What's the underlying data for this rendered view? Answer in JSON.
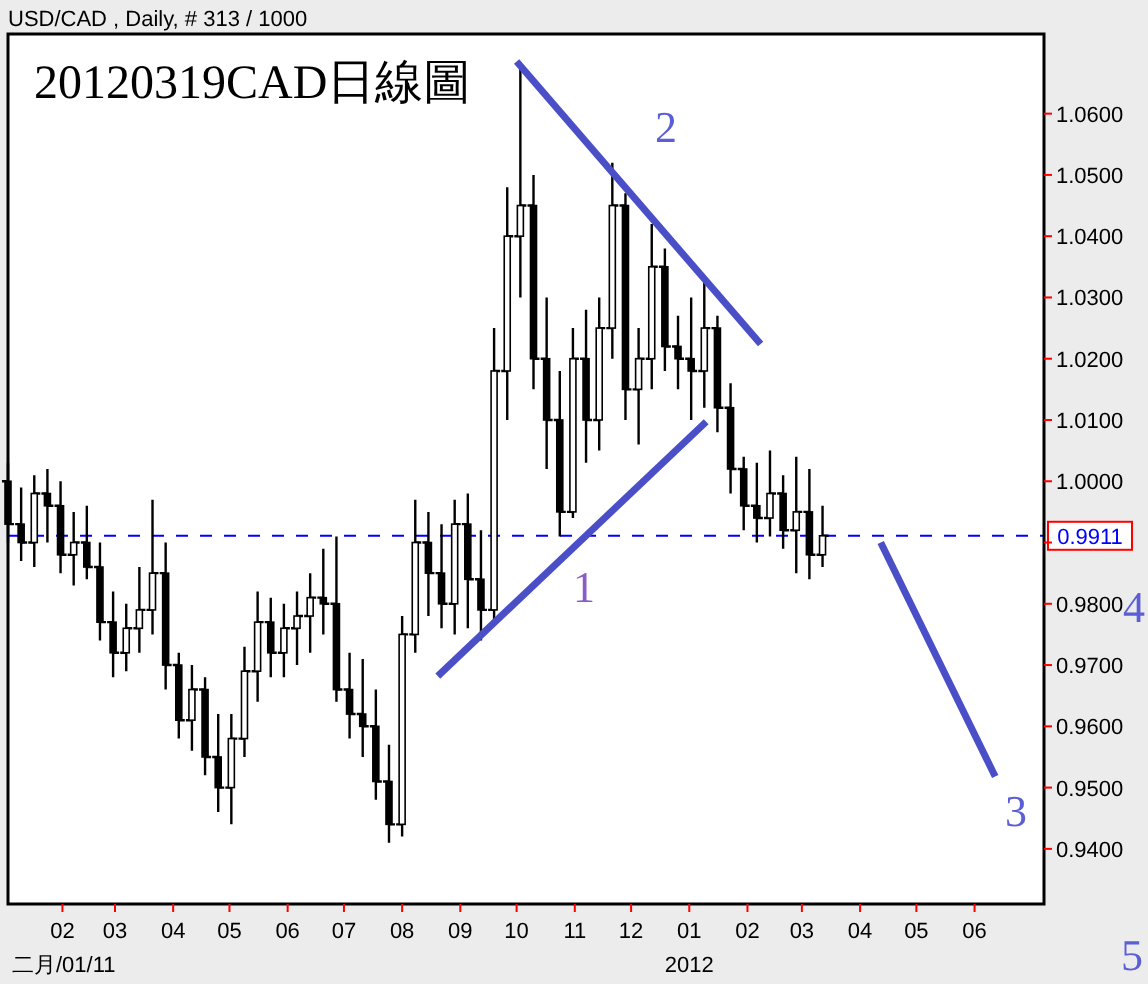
{
  "chart_data": {
    "type": "candlestick",
    "title": "20120319CAD日線圖",
    "subtitle": "USD/CAD , Daily, # 313 / 1000",
    "x": [
      "2011-01-03",
      "2011-01-10",
      "2011-01-17",
      "2011-01-24",
      "2011-01-31",
      "2011-02-07",
      "2011-02-14",
      "2011-02-21",
      "2011-02-28",
      "2011-03-07",
      "2011-03-14",
      "2011-03-21",
      "2011-03-28",
      "2011-04-04",
      "2011-04-11",
      "2011-04-18",
      "2011-04-25",
      "2011-05-02",
      "2011-05-09",
      "2011-05-16",
      "2011-05-23",
      "2011-05-30",
      "2011-06-06",
      "2011-06-13",
      "2011-06-20",
      "2011-06-27",
      "2011-07-04",
      "2011-07-11",
      "2011-07-18",
      "2011-07-25",
      "2011-08-01",
      "2011-08-08",
      "2011-08-15",
      "2011-08-22",
      "2011-08-29",
      "2011-09-05",
      "2011-09-12",
      "2011-09-19",
      "2011-09-26",
      "2011-10-03",
      "2011-10-10",
      "2011-10-17",
      "2011-10-24",
      "2011-10-31",
      "2011-11-07",
      "2011-11-14",
      "2011-11-21",
      "2011-11-28",
      "2011-12-05",
      "2011-12-12",
      "2011-12-19",
      "2011-12-26",
      "2012-01-02",
      "2012-01-09",
      "2012-01-16",
      "2012-01-23",
      "2012-01-30",
      "2012-02-06",
      "2012-02-13",
      "2012-02-20",
      "2012-02-27",
      "2012-03-05",
      "2012-03-12"
    ],
    "ohlc": [
      [
        1.0,
        1.003,
        0.99,
        0.993
      ],
      [
        0.993,
        0.999,
        0.987,
        0.99
      ],
      [
        0.99,
        1.001,
        0.986,
        0.998
      ],
      [
        0.998,
        1.002,
        0.99,
        0.996
      ],
      [
        0.996,
        1.0,
        0.985,
        0.988
      ],
      [
        0.988,
        0.995,
        0.983,
        0.99
      ],
      [
        0.99,
        0.996,
        0.984,
        0.986
      ],
      [
        0.986,
        0.99,
        0.974,
        0.977
      ],
      [
        0.977,
        0.982,
        0.968,
        0.972
      ],
      [
        0.972,
        0.98,
        0.969,
        0.976
      ],
      [
        0.976,
        0.986,
        0.972,
        0.979
      ],
      [
        0.979,
        0.997,
        0.975,
        0.985
      ],
      [
        0.985,
        0.99,
        0.966,
        0.97
      ],
      [
        0.97,
        0.972,
        0.958,
        0.961
      ],
      [
        0.961,
        0.97,
        0.956,
        0.966
      ],
      [
        0.966,
        0.968,
        0.952,
        0.955
      ],
      [
        0.955,
        0.962,
        0.946,
        0.95
      ],
      [
        0.95,
        0.962,
        0.944,
        0.958
      ],
      [
        0.958,
        0.973,
        0.955,
        0.969
      ],
      [
        0.969,
        0.982,
        0.964,
        0.977
      ],
      [
        0.977,
        0.981,
        0.968,
        0.972
      ],
      [
        0.972,
        0.98,
        0.968,
        0.976
      ],
      [
        0.976,
        0.982,
        0.97,
        0.978
      ],
      [
        0.978,
        0.985,
        0.972,
        0.981
      ],
      [
        0.981,
        0.989,
        0.975,
        0.98
      ],
      [
        0.98,
        0.991,
        0.964,
        0.966
      ],
      [
        0.966,
        0.972,
        0.958,
        0.962
      ],
      [
        0.962,
        0.971,
        0.955,
        0.96
      ],
      [
        0.96,
        0.966,
        0.948,
        0.951
      ],
      [
        0.951,
        0.957,
        0.941,
        0.944
      ],
      [
        0.944,
        0.978,
        0.942,
        0.975
      ],
      [
        0.975,
        0.997,
        0.972,
        0.99
      ],
      [
        0.99,
        0.995,
        0.978,
        0.985
      ],
      [
        0.985,
        0.993,
        0.976,
        0.98
      ],
      [
        0.98,
        0.997,
        0.975,
        0.993
      ],
      [
        0.993,
        0.998,
        0.976,
        0.984
      ],
      [
        0.984,
        0.992,
        0.974,
        0.979
      ],
      [
        0.979,
        1.025,
        0.977,
        1.018
      ],
      [
        1.018,
        1.048,
        1.01,
        1.04
      ],
      [
        1.04,
        1.068,
        1.03,
        1.045
      ],
      [
        1.045,
        1.05,
        1.015,
        1.02
      ],
      [
        1.02,
        1.03,
        1.002,
        1.01
      ],
      [
        1.01,
        1.018,
        0.991,
        0.995
      ],
      [
        0.995,
        1.025,
        0.994,
        1.02
      ],
      [
        1.02,
        1.028,
        1.003,
        1.01
      ],
      [
        1.01,
        1.03,
        1.005,
        1.025
      ],
      [
        1.025,
        1.052,
        1.02,
        1.045
      ],
      [
        1.045,
        1.047,
        1.01,
        1.015
      ],
      [
        1.015,
        1.025,
        1.006,
        1.02
      ],
      [
        1.02,
        1.042,
        1.015,
        1.035
      ],
      [
        1.035,
        1.038,
        1.018,
        1.022
      ],
      [
        1.022,
        1.027,
        1.015,
        1.02
      ],
      [
        1.02,
        1.03,
        1.01,
        1.018
      ],
      [
        1.018,
        1.033,
        1.012,
        1.025
      ],
      [
        1.025,
        1.027,
        1.008,
        1.012
      ],
      [
        1.012,
        1.016,
        0.998,
        1.002
      ],
      [
        1.002,
        1.004,
        0.992,
        0.996
      ],
      [
        0.996,
        1.003,
        0.99,
        0.994
      ],
      [
        0.994,
        1.005,
        0.991,
        0.998
      ],
      [
        0.998,
        1.001,
        0.989,
        0.992
      ],
      [
        0.992,
        1.004,
        0.985,
        0.995
      ],
      [
        0.995,
        1.002,
        0.984,
        0.988
      ],
      [
        0.988,
        0.996,
        0.986,
        0.9911
      ]
    ],
    "color": "#000000",
    "series": [
      {
        "type": "line",
        "color": "#4a4fc8",
        "x": [
          "2011-10-01",
          "2012-02-08"
        ],
        "values": [
          1.0685,
          1.0224
        ]
      },
      {
        "type": "line",
        "color": "#4a4fc8",
        "x": [
          "2011-08-20",
          "2012-01-10"
        ],
        "values": [
          0.9682,
          1.0097
        ]
      },
      {
        "type": "line",
        "color": "#4a4fc8",
        "x": [
          "2012-04-12",
          "2012-06-12"
        ],
        "values": [
          0.99,
          0.9518
        ]
      }
    ],
    "ref_lines": [
      {
        "axis": "y",
        "value": 0.9911,
        "label": "0.9911",
        "color": "#0000ff",
        "line_style": "dashed"
      }
    ],
    "annotations": [
      "1",
      "2",
      "3",
      "4",
      "5",
      "二月/01/11",
      "2012"
    ],
    "xlim": [
      "2011-01-03",
      "2012-07-08"
    ],
    "xticks": [
      {
        "value": "2011-02-01",
        "label": "02"
      },
      {
        "value": "2011-03-01",
        "label": "03"
      },
      {
        "value": "2011-04-01",
        "label": "04"
      },
      {
        "value": "2011-05-01",
        "label": "05"
      },
      {
        "value": "2011-06-01",
        "label": "06"
      },
      {
        "value": "2011-07-01",
        "label": "07"
      },
      {
        "value": "2011-08-01",
        "label": "08"
      },
      {
        "value": "2011-09-01",
        "label": "09"
      },
      {
        "value": "2011-10-01",
        "label": "10"
      },
      {
        "value": "2011-11-01",
        "label": "11"
      },
      {
        "value": "2011-12-01",
        "label": "12"
      },
      {
        "value": "2012-01-01",
        "label": "01"
      },
      {
        "value": "2012-02-01",
        "label": "02"
      },
      {
        "value": "2012-03-01",
        "label": "03"
      },
      {
        "value": "2012-04-01",
        "label": "04"
      },
      {
        "value": "2012-05-01",
        "label": "05"
      },
      {
        "value": "2012-06-01",
        "label": "06"
      }
    ],
    "ylim": [
      0.931,
      1.073
    ],
    "yticks": [
      {
        "value": 0.94,
        "label": "0.9400"
      },
      {
        "value": 0.95,
        "label": "0.9500"
      },
      {
        "value": 0.96,
        "label": "0.9600"
      },
      {
        "value": 0.97,
        "label": "0.9700"
      },
      {
        "value": 0.98,
        "label": "0.9800"
      },
      {
        "value": 0.99,
        "label": null
      },
      {
        "value": 1.0,
        "label": "1.0000"
      },
      {
        "value": 1.01,
        "label": "1.0100"
      },
      {
        "value": 1.02,
        "label": "1.0200"
      },
      {
        "value": 1.03,
        "label": "1.0300"
      },
      {
        "value": 1.04,
        "label": "1.0400"
      },
      {
        "value": 1.05,
        "label": "1.0500"
      },
      {
        "value": 1.06,
        "label": "1.0600"
      }
    ],
    "grid": false
  }
}
